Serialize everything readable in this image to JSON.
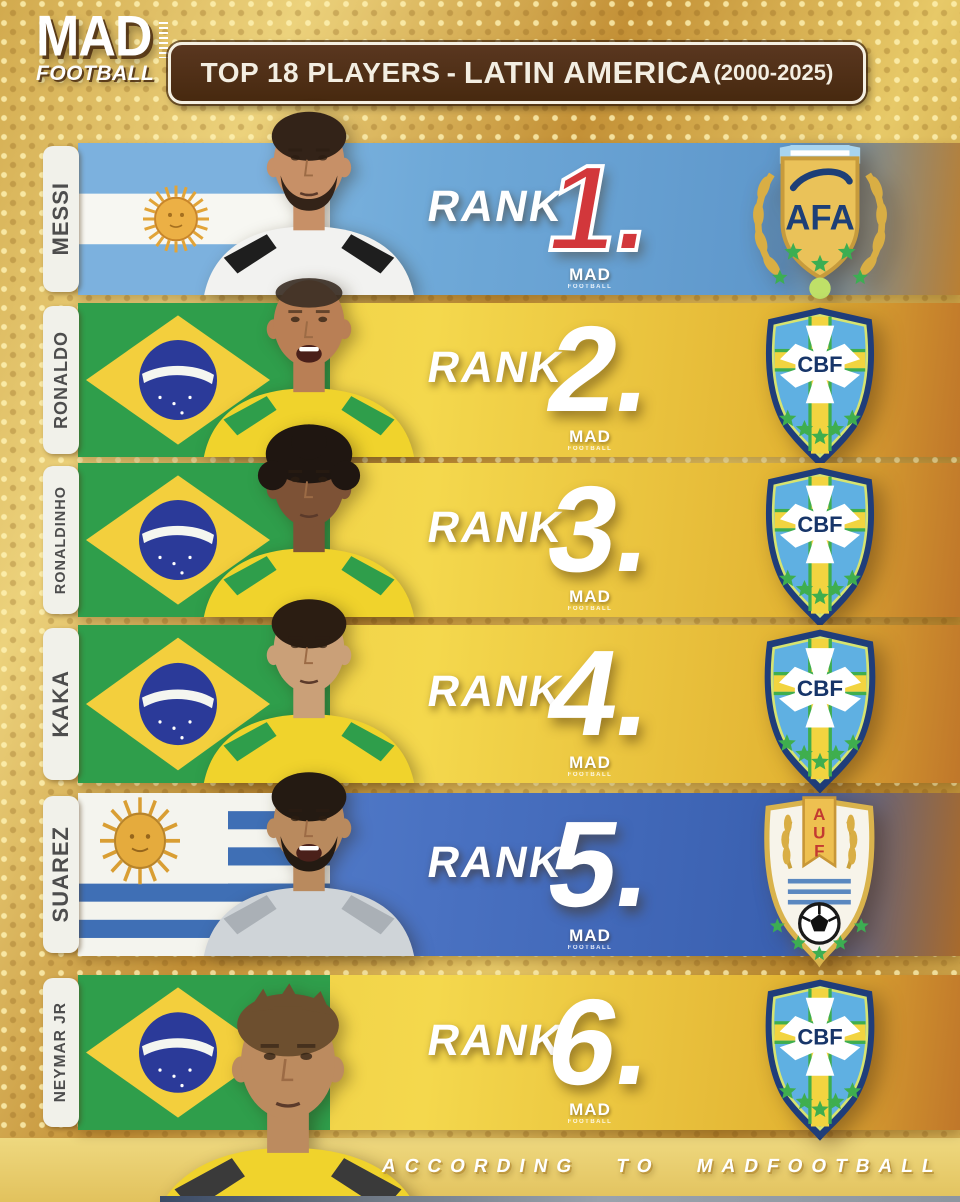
{
  "header": {
    "logo_line1": "MAD",
    "logo_line2": "FOOTBALL",
    "title_left": "TOP 18 PLAYERS",
    "title_dash": "-",
    "title_bold": "LATIN AMERICA",
    "title_years": "(2000-2025)"
  },
  "mini_logo": {
    "line1": "MAD",
    "line2": "FOOTBALL"
  },
  "footer": {
    "credit": "ACCORDING TO MADFOOTBALL"
  },
  "colors": {
    "background_gold": "#d2aa4e",
    "title_bar_brown": "#50301a",
    "row_yellow": "#f2d64e",
    "row_blue_argentina": "#6fa9d8",
    "row_blue_uruguay": "#4a72c2",
    "row_edge_orange": "#c07a28",
    "rank_one_red": "#d2373b",
    "star_green": "#3cae52",
    "badge_gold": "#eac259",
    "text_white": "#ffffff"
  },
  "rows": [
    {
      "name": "MESSI",
      "rank_label": "RANK",
      "rank": "1.",
      "country": "argentina",
      "flag_icon": "argentina-flag",
      "badge": "AFA",
      "badge_icon": "afa-crest",
      "rank_color": "#d2373b",
      "bg": [
        "#8dc0e7",
        "#6fa9d8",
        "#5e97cb",
        "#b97f33"
      ],
      "photo": {
        "jersey": "#f2f2f0",
        "accent": "#1e1e1e",
        "skin": "#c79067",
        "hair": "#332318",
        "style": "short",
        "beard": true,
        "mouth_open": false
      }
    },
    {
      "name": "RONALDO",
      "rank_label": "RANK",
      "rank": "2.",
      "country": "brazil",
      "flag_icon": "brazil-flag",
      "badge": "CBF",
      "badge_icon": "cbf-crest",
      "rank_color": "#ffffff",
      "bg": [
        "#eccb40",
        "#f4d84d",
        "#e3b534",
        "#c0772a"
      ],
      "photo": {
        "jersey": "#f0d32c",
        "accent": "#2f9e4b",
        "skin": "#b97f55",
        "hair": "#3a2e24",
        "style": "buzz",
        "beard": false,
        "mouth_open": true
      }
    },
    {
      "name": "RONALDINHO",
      "rank_label": "RANK",
      "rank": "3.",
      "country": "brazil",
      "flag_icon": "brazil-flag",
      "badge": "CBF",
      "badge_icon": "cbf-crest",
      "rank_color": "#ffffff",
      "bg": [
        "#eccb40",
        "#f4d84d",
        "#e3b534",
        "#c0772a"
      ],
      "photo": {
        "jersey": "#f0d32c",
        "accent": "#2f9e4b",
        "skin": "#7d5236",
        "hair": "#1f1611",
        "style": "curly",
        "beard": false,
        "mouth_open": false
      }
    },
    {
      "name": "KAKA",
      "rank_label": "RANK",
      "rank": "4.",
      "country": "brazil",
      "flag_icon": "brazil-flag",
      "badge": "CBF",
      "badge_icon": "cbf-crest",
      "rank_color": "#ffffff",
      "bg": [
        "#eccb40",
        "#f4d84d",
        "#e3b534",
        "#c0772a"
      ],
      "photo": {
        "jersey": "#f0d32c",
        "accent": "#2f9e4b",
        "skin": "#caa078",
        "hair": "#2b1d12",
        "style": "short",
        "beard": false,
        "mouth_open": false
      }
    },
    {
      "name": "SUAREZ",
      "rank_label": "RANK",
      "rank": "5.",
      "country": "uruguay",
      "flag_icon": "uruguay-flag",
      "badge": "AUF",
      "badge_icon": "auf-crest",
      "rank_color": "#ffffff",
      "bg": [
        "#5a85cf",
        "#4a72c2",
        "#3a60b0",
        "#a86a2c"
      ],
      "photo": {
        "jersey": "#cfd4d8",
        "accent": "#aab0b6",
        "skin": "#b98a5e",
        "hair": "#241a12",
        "style": "short",
        "beard": true,
        "mouth_open": true
      }
    },
    {
      "name": "NEYMAR JR",
      "rank_label": "RANK",
      "rank": "6.",
      "country": "brazil",
      "flag_icon": "brazil-flag",
      "badge": "CBF",
      "badge_icon": "cbf-crest",
      "rank_color": "#ffffff",
      "bg": [
        "#eccb40",
        "#f4d84d",
        "#e3b534",
        "#c0772a"
      ],
      "photo": {
        "jersey": "#f0d32c",
        "accent": "#3a3a3a",
        "skin": "#bc8b5f",
        "hair": "#6d4f2f",
        "style": "messy",
        "beard": false,
        "mouth_open": false
      }
    }
  ]
}
